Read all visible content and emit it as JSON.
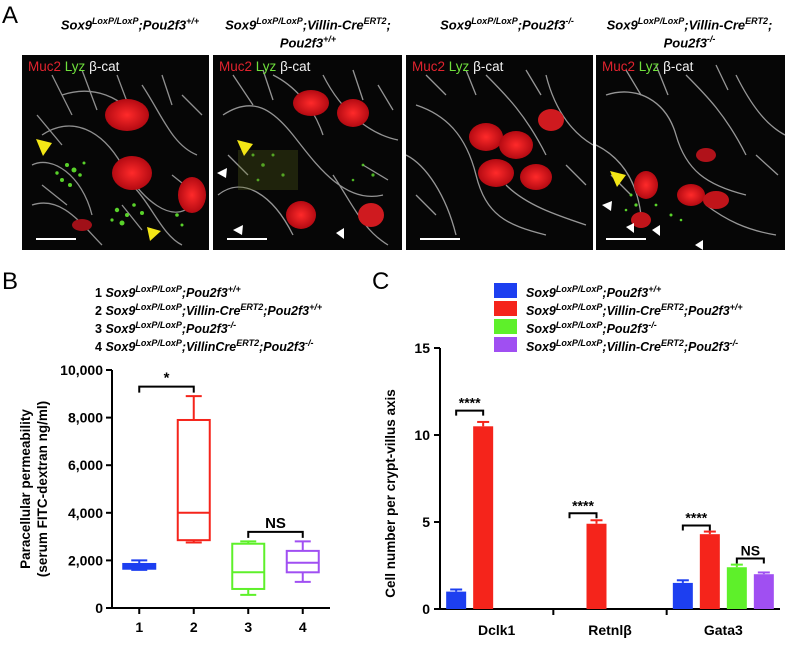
{
  "panel_a": {
    "letter": "A",
    "stain": {
      "muc2": "Muc2",
      "lyz": "Lyz",
      "bcat": "β-cat"
    },
    "genotypes": [
      "Sox9LoxP/LoxP;Pou2f3+/+",
      "Sox9LoxP/LoxP;Villin-CreERT2; Pou2f3+/+",
      "Sox9LoxP/LoxP;Pou2f3-/-",
      "Sox9LoxP/LoxP;Villin-CreERT2; Pou2f3-/-"
    ]
  },
  "panel_b": {
    "letter": "B",
    "legend": [
      {
        "num": "1",
        "text": "Sox9LoxP/LoxP;Pou2f3+/+"
      },
      {
        "num": "2",
        "text": "Sox9LoxP/LoxP;Villin-CreERT2;Pou2f3+/+"
      },
      {
        "num": "3",
        "text": "Sox9LoxP/LoxP;Pou2f3-/-"
      },
      {
        "num": "4",
        "text": "Sox9LoxP/LoxP;VillinCreERT2;Pou2f3-/-"
      }
    ]
  },
  "panel_c": {
    "letter": "C",
    "legend": [
      {
        "text": "Sox9LoxP/LoxP;Pou2f3+/+",
        "color": "#1d3ff0"
      },
      {
        "text": "Sox9LoxP/LoxP;Villin-CreERT2;Pou2f3+/+",
        "color": "#f5241b"
      },
      {
        "text": "Sox9LoxP/LoxP;Pou2f3-/-",
        "color": "#5ef02a"
      },
      {
        "text": "Sox9LoxP/LoxP;Villin-CreERT2;Pou2f3-/-",
        "color": "#a04ff2"
      }
    ]
  },
  "chart_data": [
    {
      "type": "box",
      "ylabel": "Paracellular permeability (serum FITC-dextran ng/ml)",
      "ylim": [
        0,
        10000
      ],
      "yticks": [
        "0",
        "2,000",
        "4,000",
        "6,000",
        "8,000",
        "10,000"
      ],
      "categories": [
        "1",
        "2",
        "3",
        "4"
      ],
      "colors": [
        "#1d3ff0",
        "#f5241b",
        "#5ef02a",
        "#a04ff2"
      ],
      "boxes": [
        {
          "min": 1600,
          "q1": 1650,
          "median": 1750,
          "q3": 1850,
          "max": 2000
        },
        {
          "min": 2750,
          "q1": 2850,
          "median": 4000,
          "q3": 7900,
          "max": 8900
        },
        {
          "min": 550,
          "q1": 800,
          "median": 1500,
          "q3": 2700,
          "max": 2800
        },
        {
          "min": 1100,
          "q1": 1500,
          "median": 1900,
          "q3": 2400,
          "max": 2800
        }
      ],
      "annotations": [
        {
          "between": [
            1,
            2
          ],
          "label": "*",
          "y": 9300
        },
        {
          "between": [
            3,
            4
          ],
          "label": "NS",
          "y": 3200
        }
      ]
    },
    {
      "type": "bar",
      "ylabel": "Cell number per crypt-villus axis",
      "ylim": [
        0,
        15
      ],
      "yticks": [
        "0",
        "5",
        "10",
        "15"
      ],
      "categories": [
        "Dclk1",
        "Retnlβ",
        "Gata3"
      ],
      "colors": [
        "#1d3ff0",
        "#f5241b",
        "#5ef02a",
        "#a04ff2"
      ],
      "series": [
        {
          "values": [
            1.0,
            0,
            1.5
          ],
          "errors": [
            0.12,
            0,
            0.15
          ]
        },
        {
          "values": [
            10.5,
            4.9,
            4.3
          ],
          "errors": [
            0.25,
            0.2,
            0.15
          ]
        },
        {
          "values": [
            0,
            0,
            2.4
          ],
          "errors": [
            0,
            0,
            0.15
          ]
        },
        {
          "values": [
            0,
            0,
            2.0
          ],
          "errors": [
            0,
            0,
            0.1
          ]
        }
      ],
      "annotations": [
        {
          "category": 0,
          "pair": [
            0,
            1
          ],
          "label": "****",
          "y": 11.4
        },
        {
          "category": 1,
          "pair": [
            0,
            1
          ],
          "label": "****",
          "y": 5.5
        },
        {
          "category": 2,
          "pair": [
            0,
            1
          ],
          "label": "****",
          "y": 4.8
        },
        {
          "category": 2,
          "pair": [
            2,
            3
          ],
          "label": "NS",
          "y": 2.9
        }
      ]
    }
  ]
}
